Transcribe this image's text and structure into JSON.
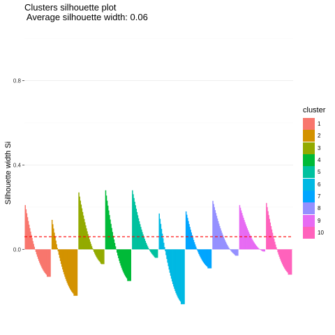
{
  "chart_data": {
    "type": "bar",
    "title": "Clusters silhouette plot",
    "subtitle": " Average silhouette width: 0.06",
    "xlabel": "",
    "ylabel": "Silhouette width Si",
    "ylim": [
      -0.33,
      1.06
    ],
    "yticks": [
      0.0,
      0.4,
      0.8
    ],
    "ytick_labels": [
      "0.0",
      "0.4",
      "0.8"
    ],
    "grid": true,
    "average_silhouette": 0.06,
    "legend": {
      "title": "cluster",
      "position": "right"
    },
    "series": [
      {
        "name": "1",
        "color": "#F8766D",
        "max": 0.21,
        "min": -0.13
      },
      {
        "name": "2",
        "color": "#D39200",
        "max": 0.14,
        "min": -0.22
      },
      {
        "name": "3",
        "color": "#93AA00",
        "max": 0.27,
        "min": -0.07
      },
      {
        "name": "4",
        "color": "#00BA38",
        "max": 0.28,
        "min": -0.15
      },
      {
        "name": "5",
        "color": "#00C19F",
        "max": 0.28,
        "min": -0.04
      },
      {
        "name": "6",
        "color": "#00B9E3",
        "max": 0.17,
        "min": -0.26
      },
      {
        "name": "7",
        "color": "#00A5FF",
        "max": 0.18,
        "min": -0.09
      },
      {
        "name": "8",
        "color": "#9590FF",
        "max": 0.23,
        "min": -0.03
      },
      {
        "name": "9",
        "color": "#E76BF3",
        "max": 0.21,
        "min": -0.01
      },
      {
        "name": "10",
        "color": "#FF62BC",
        "max": 0.22,
        "min": -0.12
      }
    ]
  }
}
